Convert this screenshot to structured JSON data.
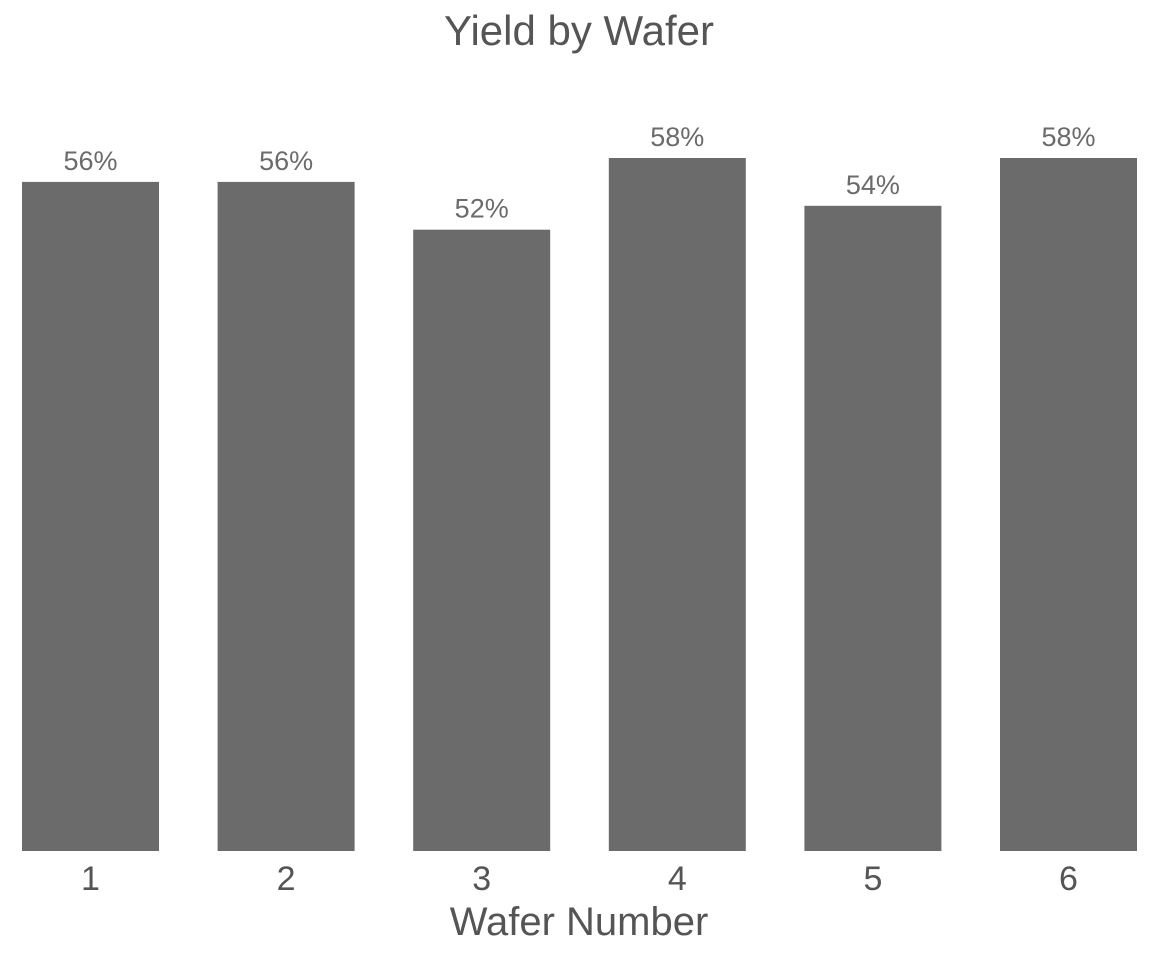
{
  "chart_data": {
    "type": "bar",
    "title": "Yield by Wafer",
    "xlabel": "Wafer Number",
    "ylabel": "",
    "categories": [
      "1",
      "2",
      "3",
      "4",
      "5",
      "6"
    ],
    "values": [
      56,
      56,
      52,
      58,
      54,
      58
    ],
    "data_labels": [
      "56%",
      "56%",
      "52%",
      "58%",
      "54%",
      "58%"
    ],
    "ylim": [
      0,
      58.5
    ],
    "grid": false,
    "legend": "none",
    "colors": {
      "bar": "#6b6b6b",
      "text": "#555555",
      "label": "#6b6b6b",
      "background": "#ffffff"
    }
  }
}
